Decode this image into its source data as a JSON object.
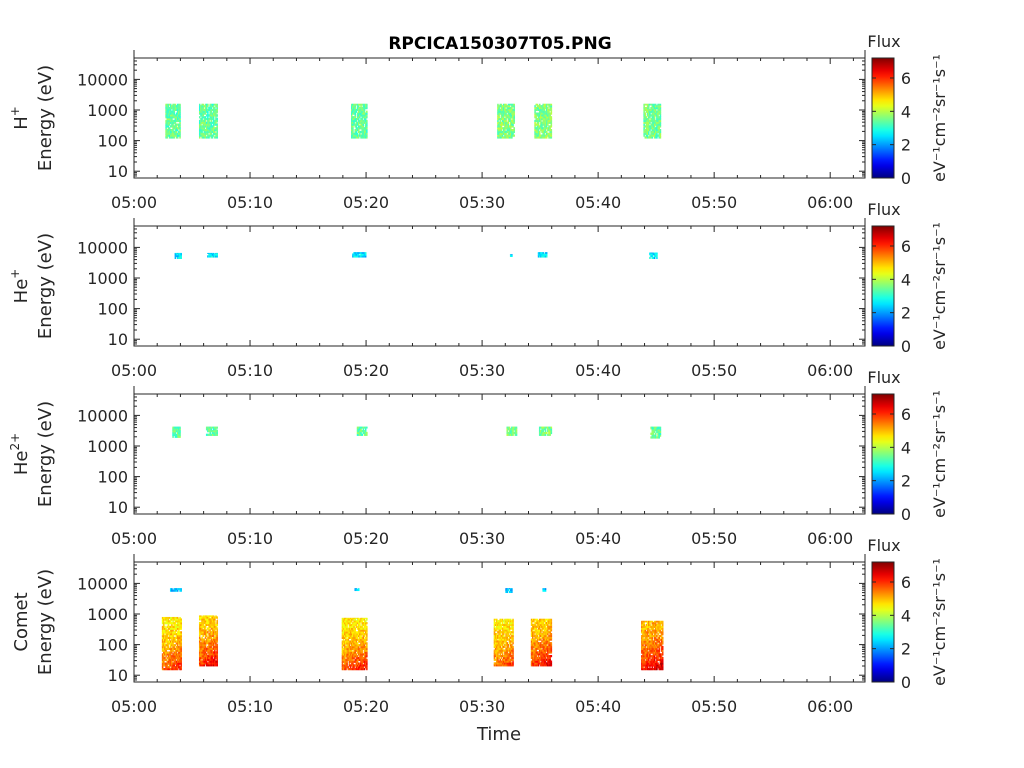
{
  "title": "RPCICA150307T05.PNG",
  "xlabel": "Time",
  "colorbar": {
    "title": "Flux",
    "label": "eV⁻¹cm⁻²sr⁻¹s⁻¹",
    "ticks": [
      "0",
      "2",
      "4",
      "6"
    ]
  },
  "chart_data": {
    "type": "heatmap",
    "title": "RPCICA150307T05.PNG",
    "xlabel": "Time",
    "x_ticks": [
      "05:00",
      "05:10",
      "05:20",
      "05:30",
      "05:40",
      "05:50",
      "06:00"
    ],
    "xlim_minutes_after_0500": [
      0,
      63
    ],
    "y_scale": "log",
    "y_ticks": [
      "10",
      "100",
      "1000",
      "10000"
    ],
    "ylim_eV": [
      6,
      50000
    ],
    "color_scale": "jet",
    "color_range": [
      0,
      7.2
    ],
    "colorbar_title": "Flux",
    "colorbar_label": "eV⁻¹cm⁻²sr⁻¹s⁻¹",
    "panels": [
      {
        "species": "H",
        "charge_superscript": "+",
        "ylabel": "Energy (eV)",
        "bursts": [
          {
            "t_start": "05:02.7",
            "t_end": "05:04.0",
            "e_min": 120,
            "e_max": 1600,
            "flux": 3.4
          },
          {
            "t_start": "05:05.6",
            "t_end": "05:07.2",
            "e_min": 120,
            "e_max": 1600,
            "flux": 3.4
          },
          {
            "t_start": "05:18.7",
            "t_end": "05:20.1",
            "e_min": 120,
            "e_max": 1600,
            "flux": 3.4
          },
          {
            "t_start": "05:31.3",
            "t_end": "05:32.8",
            "e_min": 120,
            "e_max": 1600,
            "flux": 3.6
          },
          {
            "t_start": "05:34.5",
            "t_end": "05:36.0",
            "e_min": 120,
            "e_max": 1600,
            "flux": 3.6
          },
          {
            "t_start": "05:43.9",
            "t_end": "05:45.4",
            "e_min": 120,
            "e_max": 1600,
            "flux": 3.5
          }
        ]
      },
      {
        "species": "He",
        "charge_superscript": "+",
        "ylabel": "Energy (eV)",
        "bursts": [
          {
            "t_start": "05:03.5",
            "t_end": "05:04.1",
            "e_min": 4300,
            "e_max": 6600,
            "flux": 2.5
          },
          {
            "t_start": "05:06.3",
            "t_end": "05:07.2",
            "e_min": 4800,
            "e_max": 6600,
            "flux": 2.5
          },
          {
            "t_start": "05:18.8",
            "t_end": "05:20.1",
            "e_min": 4800,
            "e_max": 7000,
            "flux": 2.5
          },
          {
            "t_start": "05:32.4",
            "t_end": "05:32.6",
            "e_min": 5000,
            "e_max": 6000,
            "flux": 2.5
          },
          {
            "t_start": "05:34.8",
            "t_end": "05:35.6",
            "e_min": 4800,
            "e_max": 7000,
            "flux": 2.5
          },
          {
            "t_start": "05:44.4",
            "t_end": "05:45.1",
            "e_min": 4300,
            "e_max": 6800,
            "flux": 2.5
          }
        ]
      },
      {
        "species": "He",
        "charge_superscript": "2+",
        "ylabel": "Energy (eV)",
        "bursts": [
          {
            "t_start": "05:03.3",
            "t_end": "05:04.0",
            "e_min": 1900,
            "e_max": 4300,
            "flux": 3.4
          },
          {
            "t_start": "05:06.2",
            "t_end": "05:07.2",
            "e_min": 2200,
            "e_max": 4300,
            "flux": 3.4
          },
          {
            "t_start": "05:19.2",
            "t_end": "05:20.1",
            "e_min": 2200,
            "e_max": 4300,
            "flux": 3.4
          },
          {
            "t_start": "05:32.1",
            "t_end": "05:33.0",
            "e_min": 2200,
            "e_max": 4300,
            "flux": 3.6
          },
          {
            "t_start": "05:34.9",
            "t_end": "05:36.0",
            "e_min": 2200,
            "e_max": 4300,
            "flux": 3.6
          },
          {
            "t_start": "05:44.5",
            "t_end": "05:45.4",
            "e_min": 1800,
            "e_max": 4300,
            "flux": 3.4
          }
        ]
      },
      {
        "species": "Comet",
        "charge_superscript": "",
        "ylabel": "Energy (eV)",
        "bursts": [
          {
            "t_start": "05:02.4",
            "t_end": "05:04.1",
            "e_min": 15,
            "e_max": 800,
            "flux": 4.6,
            "peak_flux": 6.2
          },
          {
            "t_start": "05:05.6",
            "t_end": "05:07.2",
            "e_min": 20,
            "e_max": 900,
            "flux": 4.8,
            "peak_flux": 6.6
          },
          {
            "t_start": "05:17.9",
            "t_end": "05:20.1",
            "e_min": 15,
            "e_max": 750,
            "flux": 4.6,
            "peak_flux": 6.3
          },
          {
            "t_start": "05:31.0",
            "t_end": "05:32.7",
            "e_min": 20,
            "e_max": 700,
            "flux": 4.6,
            "peak_flux": 6.0
          },
          {
            "t_start": "05:34.2",
            "t_end": "05:36.0",
            "e_min": 20,
            "e_max": 700,
            "flux": 4.8,
            "peak_flux": 6.6
          },
          {
            "t_start": "05:43.7",
            "t_end": "05:45.6",
            "e_min": 15,
            "e_max": 600,
            "flux": 5.0,
            "peak_flux": 6.8
          },
          {
            "t_start": "05:03.1",
            "t_end": "05:04.1",
            "e_min": 5500,
            "e_max": 7000,
            "flux": 2.3
          },
          {
            "t_start": "05:19.0",
            "t_end": "05:19.4",
            "e_min": 5800,
            "e_max": 7000,
            "flux": 2.3
          },
          {
            "t_start": "05:32.0",
            "t_end": "05:32.6",
            "e_min": 5000,
            "e_max": 7000,
            "flux": 2.3
          },
          {
            "t_start": "05:35.2",
            "t_end": "05:35.5",
            "e_min": 5500,
            "e_max": 7000,
            "flux": 2.3
          }
        ]
      }
    ]
  }
}
